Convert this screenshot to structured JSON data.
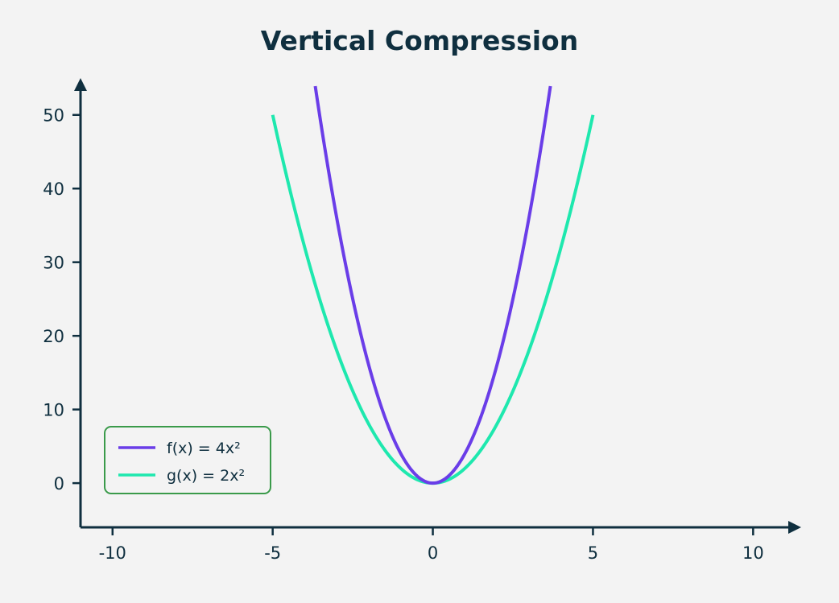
{
  "chart_data": {
    "type": "line",
    "title": "Vertical Compression",
    "xlabel": "",
    "ylabel": "",
    "xlim": [
      -11,
      11.5
    ],
    "ylim": [
      -6,
      55
    ],
    "x_ticks": [
      "-10",
      "-5",
      "0",
      "5",
      "10"
    ],
    "y_ticks": [
      "0",
      "10",
      "20",
      "30",
      "40",
      "50"
    ],
    "grid": false,
    "legend_position": "bottom-left",
    "series": [
      {
        "name": "f(x) = 4x²",
        "color": "#6a3de8",
        "x": [
          -3.708,
          -3.5,
          -3,
          -2.5,
          -2,
          -1.5,
          -1,
          -0.5,
          0,
          0.5,
          1,
          1.5,
          2,
          2.5,
          3,
          3.5,
          3.708
        ],
        "y": [
          55,
          49,
          36,
          25,
          16,
          9,
          4,
          1,
          0,
          1,
          4,
          9,
          16,
          25,
          36,
          49,
          55
        ]
      },
      {
        "name": "g(x) = 2x²",
        "color": "#1ee8ae",
        "x": [
          -5,
          -4.5,
          -4,
          -3.5,
          -3,
          -2.5,
          -2,
          -1.5,
          -1,
          -0.5,
          0,
          0.5,
          1,
          1.5,
          2,
          2.5,
          3,
          3.5,
          4,
          4.5,
          5
        ],
        "y": [
          50,
          40.5,
          32,
          24.5,
          18,
          12.5,
          8,
          4.5,
          2,
          0.5,
          0,
          0.5,
          2,
          4.5,
          8,
          12.5,
          18,
          24.5,
          32,
          40.5,
          50
        ]
      }
    ],
    "axis_color": "#0f2f3f",
    "legend_border_color": "#3a9a4a"
  }
}
